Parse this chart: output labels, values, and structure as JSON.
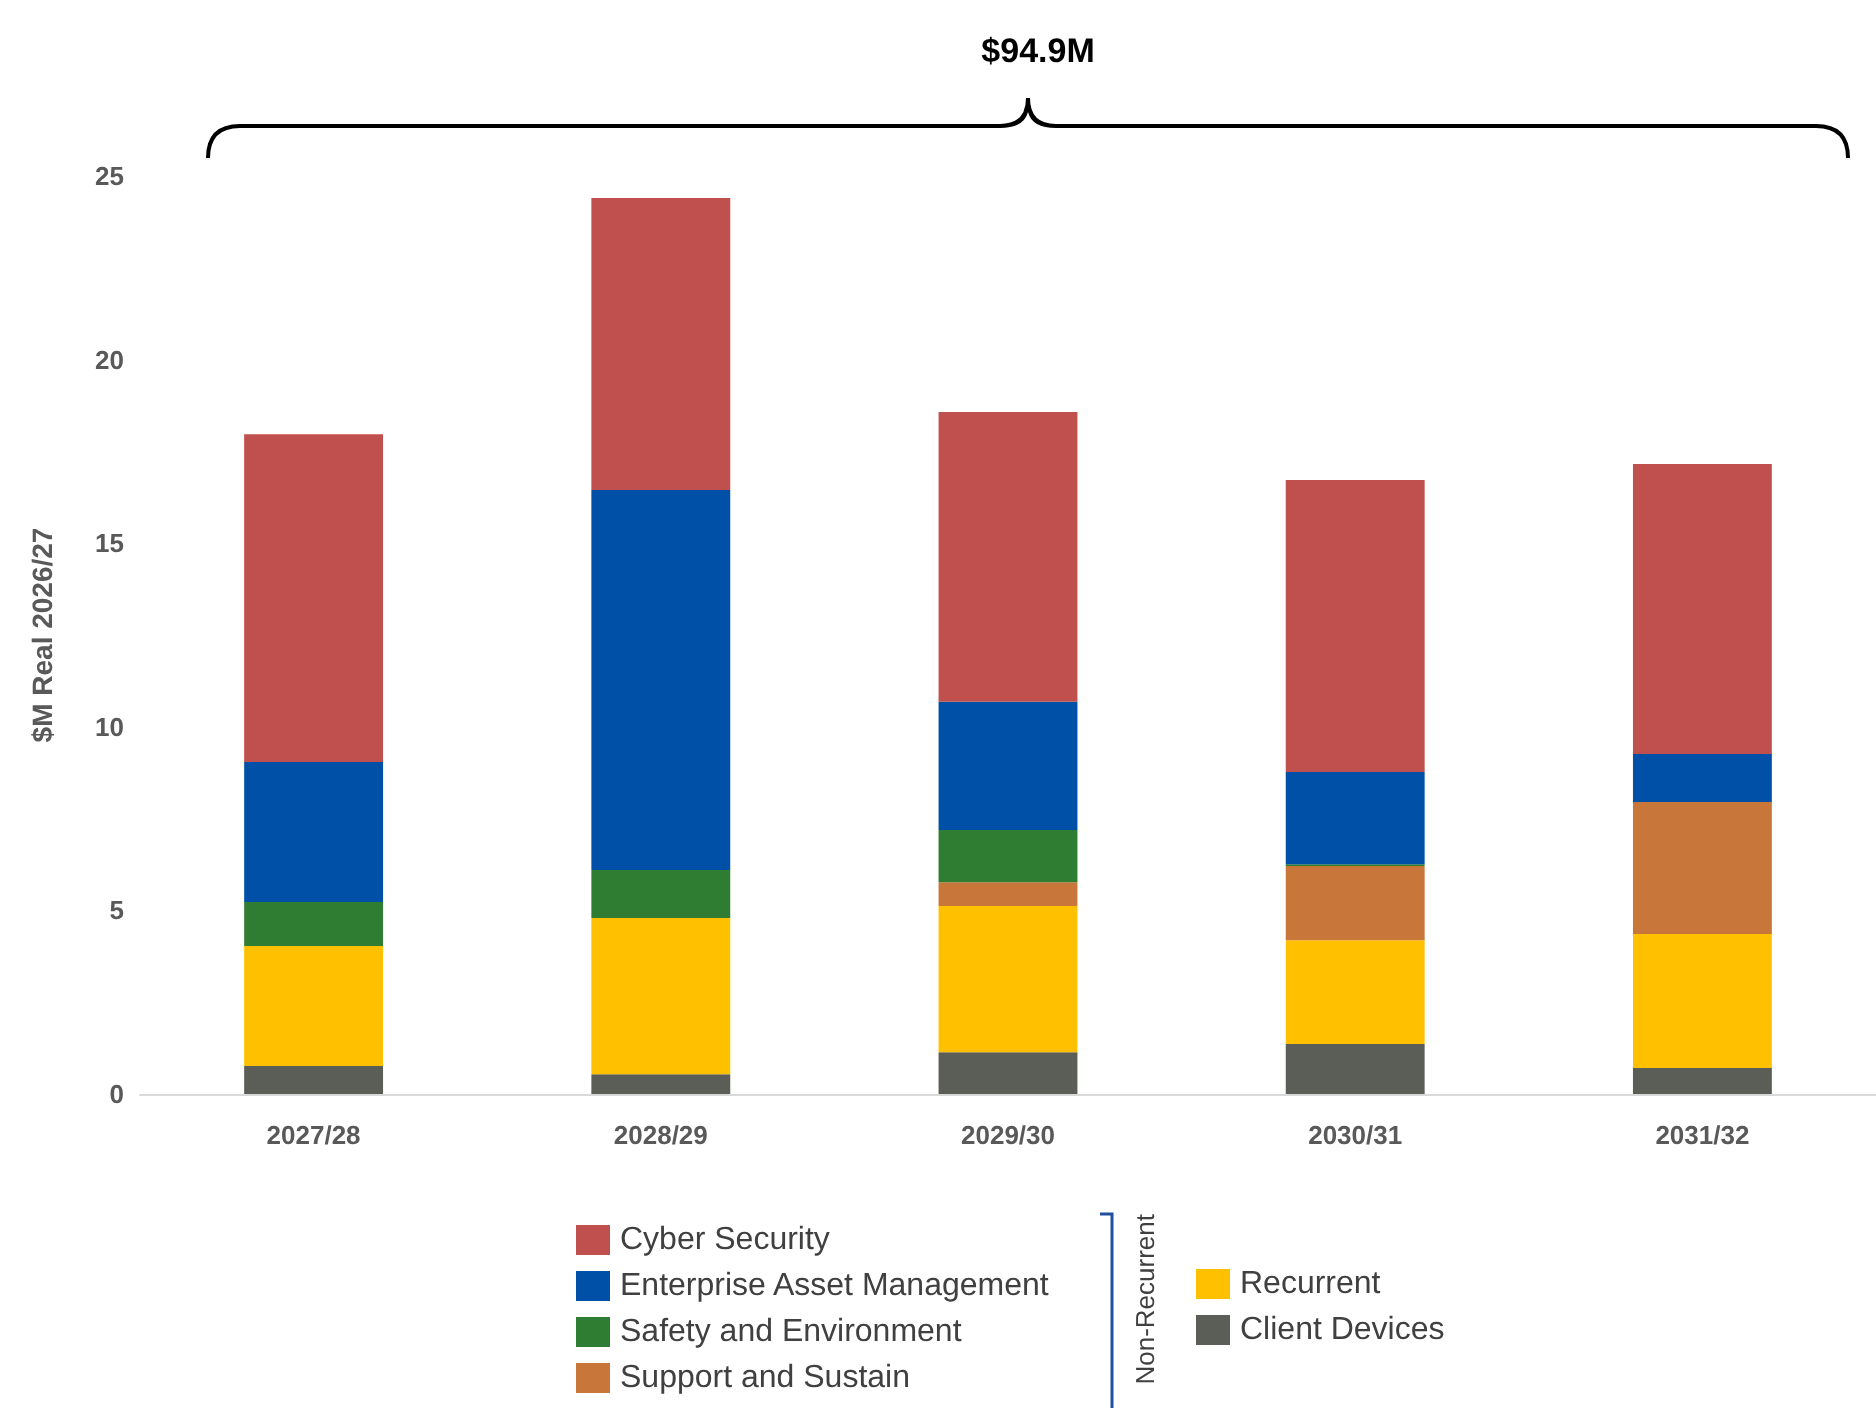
{
  "chart_data": {
    "type": "bar",
    "title": "$94.9M",
    "ylabel": "$M Real 2026/27",
    "categories": [
      "2027/28",
      "2028/29",
      "2029/30",
      "2030/31",
      "2031/32"
    ],
    "stacked": true,
    "series": [
      {
        "name": "Client Devices",
        "color": "#5a5e56",
        "values": [
          0.76,
          0.54,
          1.14,
          1.36,
          0.71
        ]
      },
      {
        "name": "Recurrent",
        "color": "#ffc000",
        "values": [
          3.27,
          4.25,
          3.98,
          2.83,
          3.65
        ]
      },
      {
        "name": "Support and Sustain",
        "color": "#c8763a",
        "values": [
          0,
          0,
          0.65,
          2.02,
          3.59
        ]
      },
      {
        "name": "Safety and Environment",
        "color": "#2e7d32",
        "values": [
          1.2,
          1.31,
          1.42,
          0.05,
          0
        ]
      },
      {
        "name": "Enterprise Asset Management",
        "color": "#0050a8",
        "values": [
          3.81,
          10.35,
          3.49,
          2.51,
          1.31
        ]
      },
      {
        "name": "Cyber Security",
        "color": "#c0504d",
        "values": [
          8.93,
          7.95,
          7.89,
          7.95,
          7.9
        ]
      }
    ],
    "ylim": [
      0,
      25
    ],
    "yticks": [
      0,
      5,
      10,
      15,
      20,
      25
    ],
    "grid": false,
    "legend": "bottom",
    "annotations": [
      "Non-Recurrent"
    ]
  }
}
